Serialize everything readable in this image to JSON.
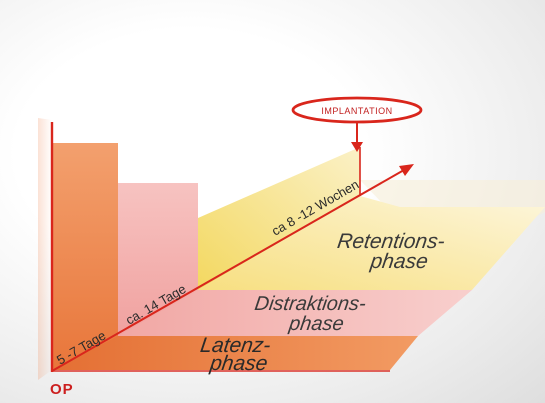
{
  "phases": [
    {
      "line1": "Latenz-",
      "line2": "phase"
    },
    {
      "line1": "Distraktions-",
      "line2": "phase"
    },
    {
      "line1": "Retentions-",
      "line2": "phase"
    }
  ],
  "durations": [
    "5 -7 Tage",
    "ca. 14 Tage",
    "ca 8 -12 Wochen"
  ],
  "origin_label": "OP",
  "marker_label": "Implantation",
  "colors": {
    "latenz": "#e97b3c",
    "distraktion": "#f2a6a3",
    "retention": "#f7e08a",
    "axis": "#d9261c"
  }
}
